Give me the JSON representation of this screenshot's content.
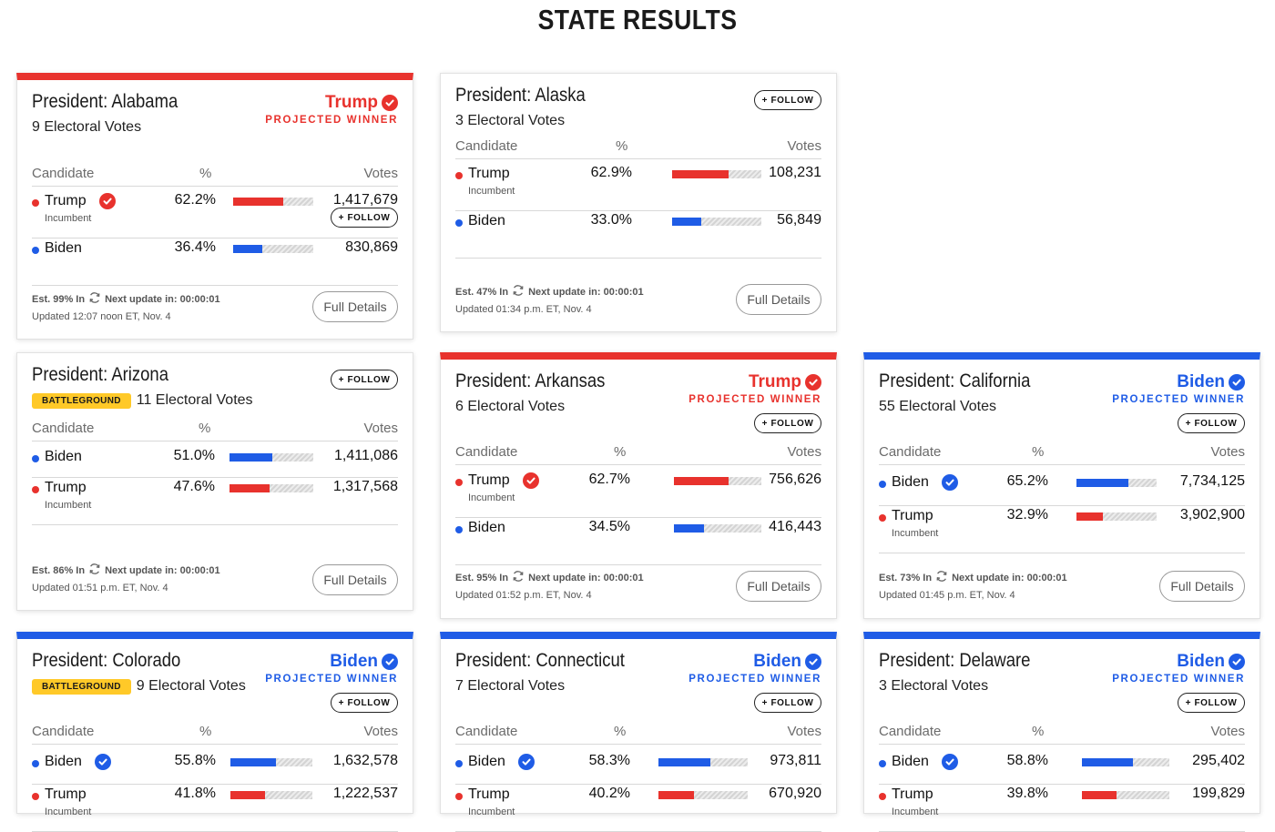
{
  "page": {
    "title": "STATE RESULTS"
  },
  "labels": {
    "candidate": "Candidate",
    "percent": "%",
    "votes": "Votes",
    "follow": "+ FOLLOW",
    "full_details": "Full Details",
    "projected_winner": "PROJECTED WINNER",
    "battleground": "BATTLEGROUND",
    "incumbent": "Incumbent",
    "next_update": "Next update in: 00:00:01"
  },
  "colors": {
    "red": "#e8322d",
    "blue": "#1f5ce6",
    "battleground": "#ffc928"
  },
  "cards": [
    {
      "title": "President: Alabama",
      "electoral_votes": "9 Electoral Votes",
      "winner": "Trump",
      "winner_party": "red",
      "rows": [
        {
          "name": "Trump",
          "party": "red",
          "incumbent": true,
          "winner_check": true,
          "pct": "62.2%",
          "share": 0.622,
          "votes": "1,417,679"
        },
        {
          "name": "Biden",
          "party": "blue",
          "incumbent": false,
          "winner_check": false,
          "pct": "36.4%",
          "share": 0.364,
          "votes": "830,869"
        }
      ],
      "est": "Est. 99% In",
      "updated": "Updated 12:07 noon ET, Nov. 4"
    },
    {
      "title": "President: Alaska",
      "electoral_votes": "3 Electoral Votes",
      "rows": [
        {
          "name": "Trump",
          "party": "red",
          "incumbent": true,
          "winner_check": false,
          "pct": "62.9%",
          "share": 0.629,
          "votes": "108,231"
        },
        {
          "name": "Biden",
          "party": "blue",
          "incumbent": false,
          "winner_check": false,
          "pct": "33.0%",
          "share": 0.33,
          "votes": "56,849"
        }
      ],
      "est": "Est. 47% In",
      "updated": "Updated 01:34 p.m. ET, Nov. 4"
    },
    {
      "title": "President: Arizona",
      "electoral_votes": "11 Electoral Votes",
      "battleground": true,
      "rows": [
        {
          "name": "Biden",
          "party": "blue",
          "incumbent": false,
          "winner_check": false,
          "pct": "51.0%",
          "share": 0.51,
          "votes": "1,411,086"
        },
        {
          "name": "Trump",
          "party": "red",
          "incumbent": true,
          "winner_check": false,
          "pct": "47.6%",
          "share": 0.476,
          "votes": "1,317,568"
        }
      ],
      "est": "Est. 86% In",
      "updated": "Updated 01:51 p.m. ET, Nov. 4"
    },
    {
      "title": "President: Arkansas",
      "electoral_votes": "6 Electoral Votes",
      "winner": "Trump",
      "winner_party": "red",
      "rows": [
        {
          "name": "Trump",
          "party": "red",
          "incumbent": true,
          "winner_check": true,
          "pct": "62.7%",
          "share": 0.627,
          "votes": "756,626"
        },
        {
          "name": "Biden",
          "party": "blue",
          "incumbent": false,
          "winner_check": false,
          "pct": "34.5%",
          "share": 0.345,
          "votes": "416,443"
        }
      ],
      "est": "Est. 95% In",
      "updated": "Updated 01:52 p.m. ET, Nov. 4"
    },
    {
      "title": "President: California",
      "electoral_votes": "55 Electoral Votes",
      "winner": "Biden",
      "winner_party": "blue",
      "rows": [
        {
          "name": "Biden",
          "party": "blue",
          "incumbent": false,
          "winner_check": true,
          "pct": "65.2%",
          "share": 0.652,
          "votes": "7,734,125"
        },
        {
          "name": "Trump",
          "party": "red",
          "incumbent": true,
          "winner_check": false,
          "pct": "32.9%",
          "share": 0.329,
          "votes": "3,902,900"
        }
      ],
      "est": "Est. 73% In",
      "updated": "Updated 01:45 p.m. ET, Nov. 4"
    },
    {
      "title": "President: Colorado",
      "electoral_votes": "9 Electoral Votes",
      "battleground": true,
      "winner": "Biden",
      "winner_party": "blue",
      "rows": [
        {
          "name": "Biden",
          "party": "blue",
          "incumbent": false,
          "winner_check": true,
          "pct": "55.8%",
          "share": 0.558,
          "votes": "1,632,578"
        },
        {
          "name": "Trump",
          "party": "red",
          "incumbent": true,
          "winner_check": false,
          "pct": "41.8%",
          "share": 0.418,
          "votes": "1,222,537"
        }
      ]
    },
    {
      "title": "President: Connecticut",
      "electoral_votes": "7 Electoral Votes",
      "winner": "Biden",
      "winner_party": "blue",
      "rows": [
        {
          "name": "Biden",
          "party": "blue",
          "incumbent": false,
          "winner_check": true,
          "pct": "58.3%",
          "share": 0.583,
          "votes": "973,811"
        },
        {
          "name": "Trump",
          "party": "red",
          "incumbent": true,
          "winner_check": false,
          "pct": "40.2%",
          "share": 0.402,
          "votes": "670,920"
        }
      ]
    },
    {
      "title": "President: Delaware",
      "electoral_votes": "3 Electoral Votes",
      "winner": "Biden",
      "winner_party": "blue",
      "rows": [
        {
          "name": "Biden",
          "party": "blue",
          "incumbent": false,
          "winner_check": true,
          "pct": "58.8%",
          "share": 0.588,
          "votes": "295,402"
        },
        {
          "name": "Trump",
          "party": "red",
          "incumbent": true,
          "winner_check": false,
          "pct": "39.8%",
          "share": 0.398,
          "votes": "199,829"
        }
      ]
    }
  ]
}
